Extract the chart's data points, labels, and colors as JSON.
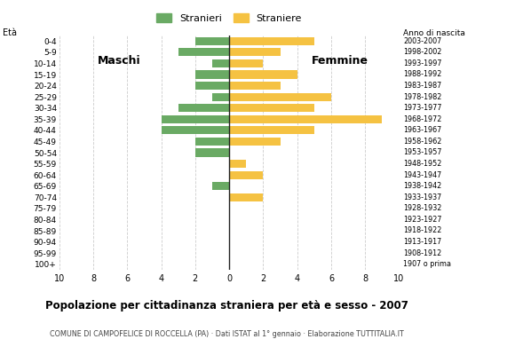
{
  "age_groups": [
    "100+",
    "95-99",
    "90-94",
    "85-89",
    "80-84",
    "75-79",
    "70-74",
    "65-69",
    "60-64",
    "55-59",
    "50-54",
    "45-49",
    "40-44",
    "35-39",
    "30-34",
    "25-29",
    "20-24",
    "15-19",
    "10-14",
    "5-9",
    "0-4"
  ],
  "birth_years": [
    "1907 o prima",
    "1908-1912",
    "1913-1917",
    "1918-1922",
    "1923-1927",
    "1928-1932",
    "1933-1937",
    "1938-1942",
    "1943-1947",
    "1948-1952",
    "1953-1957",
    "1958-1962",
    "1963-1967",
    "1968-1972",
    "1973-1977",
    "1978-1982",
    "1983-1987",
    "1988-1992",
    "1993-1997",
    "1998-2002",
    "2003-2007"
  ],
  "males": [
    0,
    0,
    0,
    0,
    0,
    0,
    0,
    1,
    0,
    0,
    2,
    2,
    4,
    4,
    3,
    1,
    2,
    2,
    1,
    3,
    2
  ],
  "females": [
    0,
    0,
    0,
    0,
    0,
    0,
    2,
    0,
    2,
    1,
    0,
    3,
    5,
    9,
    5,
    6,
    3,
    4,
    2,
    3,
    5
  ],
  "male_color": "#6aaa64",
  "female_color": "#f5c242",
  "title": "Popolazione per cittadinanza straniera per età e sesso - 2007",
  "subtitle": "COMUNE DI CAMPOFELICE DI ROCCELLA (PA) · Dati ISTAT al 1° gennaio · Elaborazione TUTTITALIA.IT",
  "label_maschi": "Maschi",
  "label_femmine": "Femmine",
  "legend_stranieri": "Stranieri",
  "legend_straniere": "Straniere",
  "xlim": 10,
  "background_color": "#ffffff",
  "grid_color": "#cccccc"
}
